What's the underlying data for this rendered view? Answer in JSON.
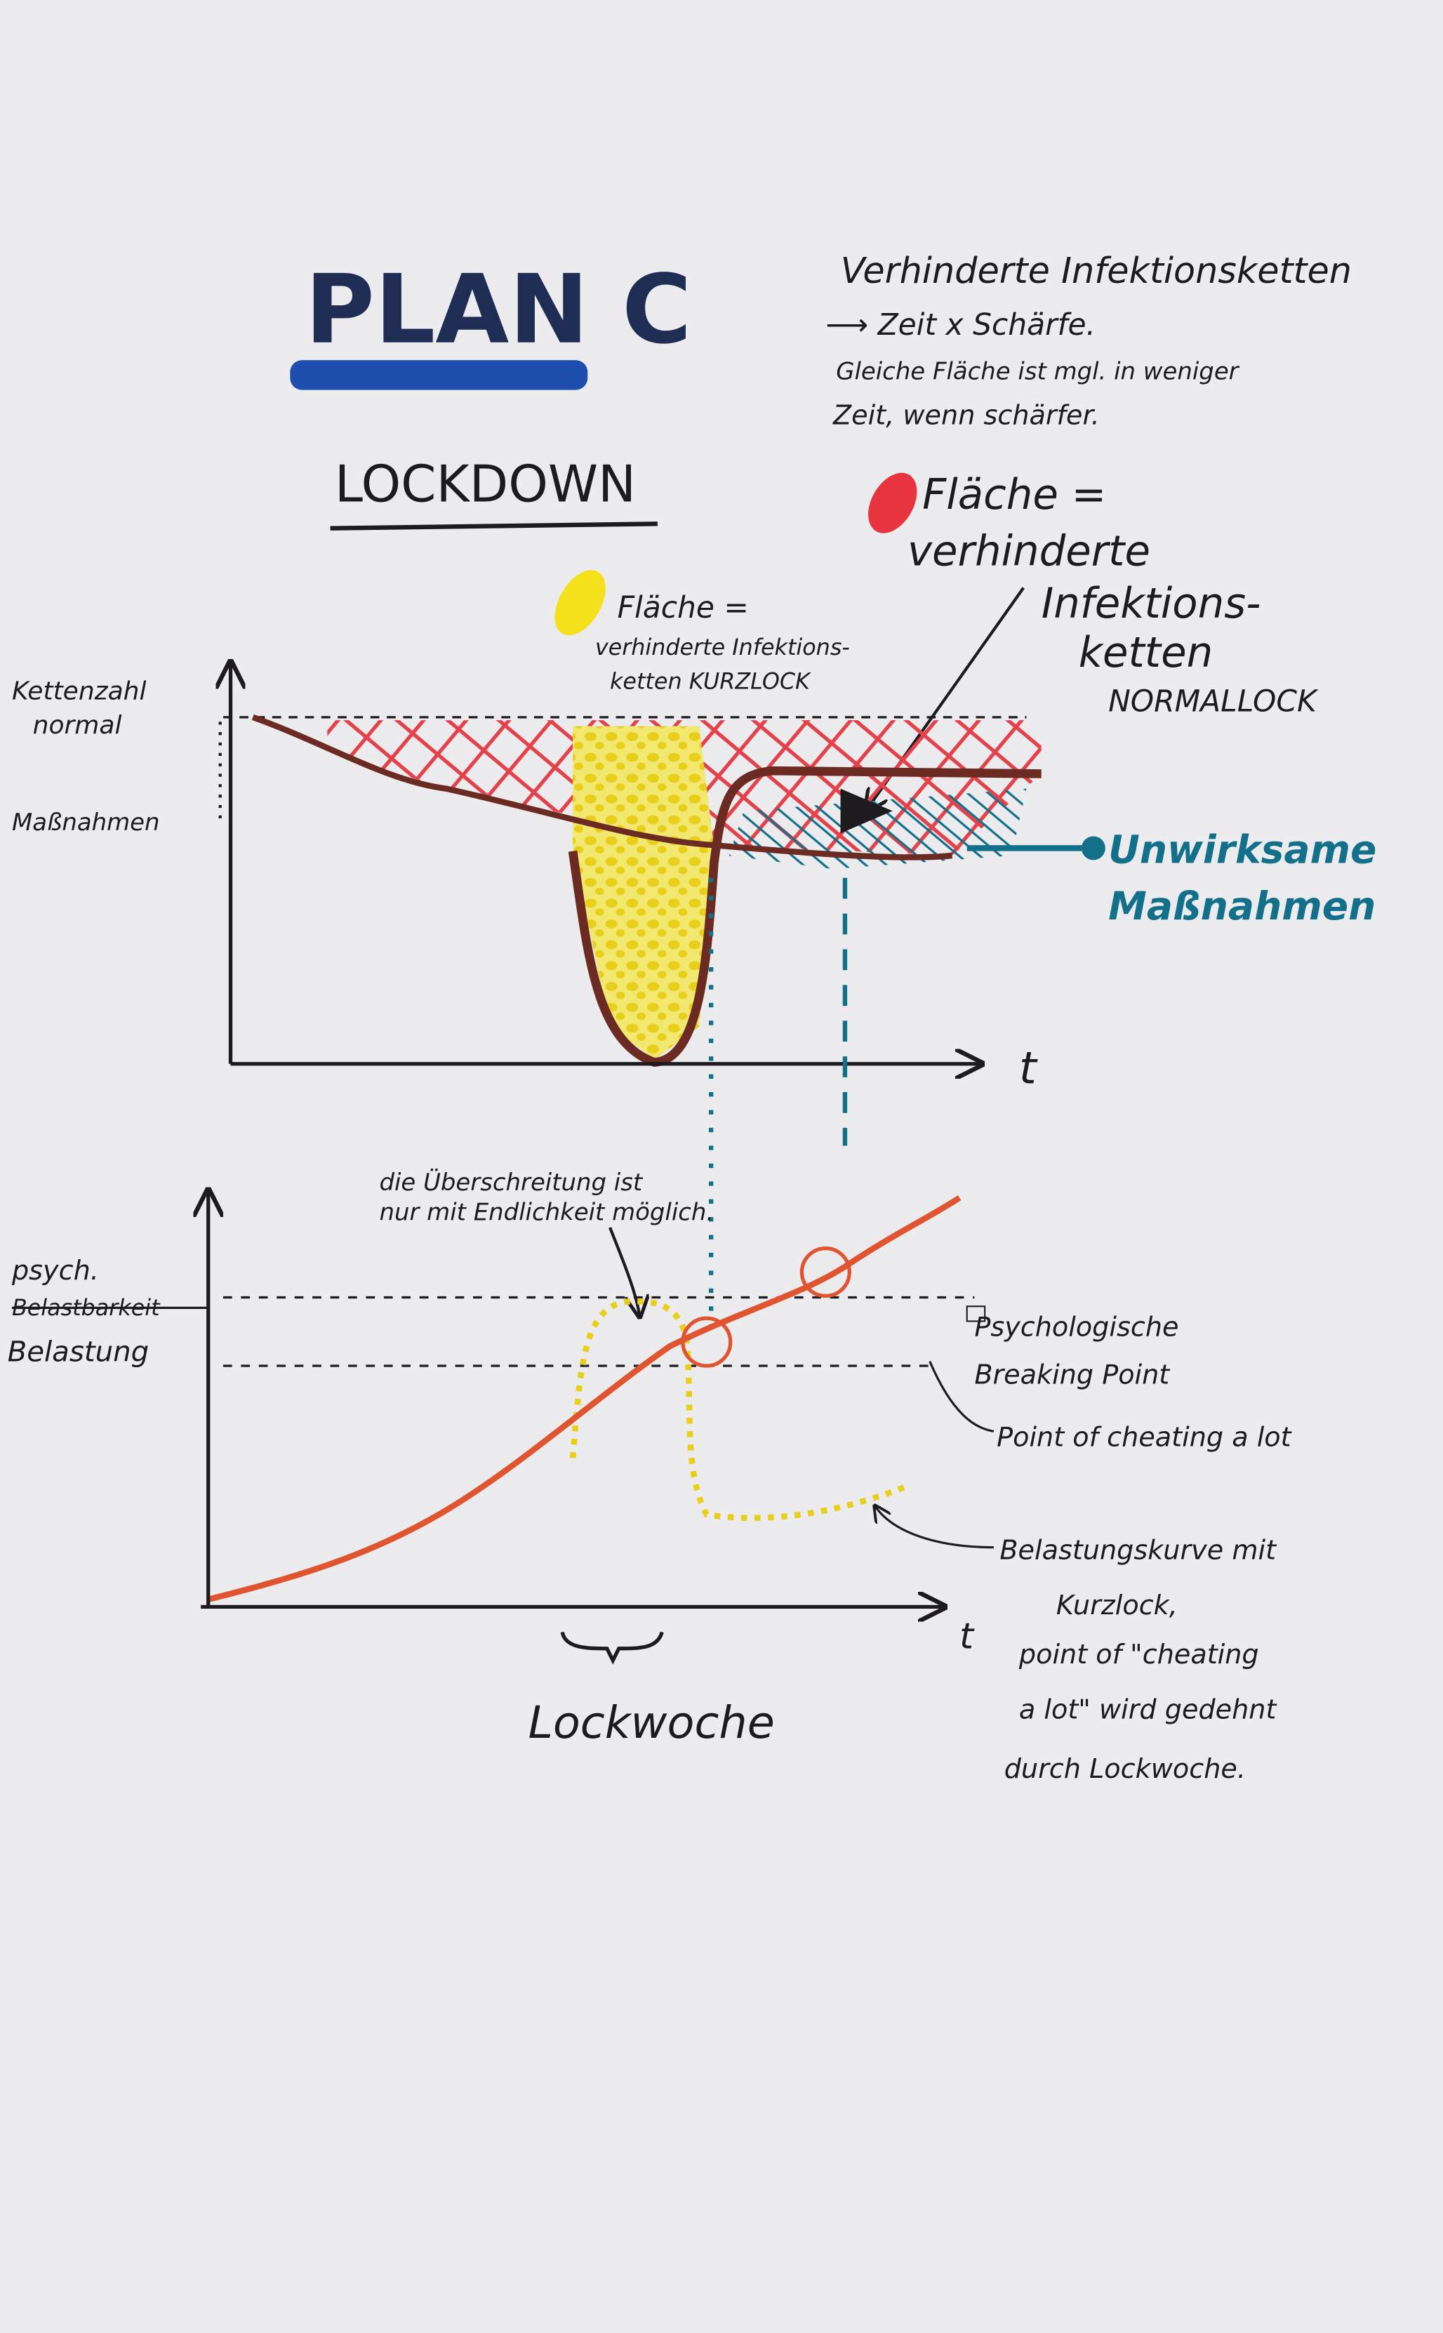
{
  "header": {
    "title": "PLAN C",
    "subtitle": "LOCKDOWN"
  },
  "notes": {
    "lines": [
      "Verhinderte Infektionsketten",
      "⟶ Zeit x Schärfe.",
      "Gleiche Fläche ist mgl. in weniger",
      "Zeit, wenn schärfer."
    ]
  },
  "top_chart": {
    "y_label_top": [
      "Kettenzahl",
      "normal"
    ],
    "y_label_bottom": "Maßnahmen",
    "x_label": "t",
    "red_note": [
      "Fläche =",
      "verhinderte",
      "Infektions-",
      "ketten",
      "NORMALLOCK"
    ],
    "yellow_note": [
      "Fläche =",
      "verhinderte Infektions-",
      "ketten  KURZLOCK"
    ],
    "teal_note": [
      "Unwirksame",
      "Maßnahmen"
    ]
  },
  "bottom_chart": {
    "note": [
      "die Überschreitung ist",
      "nur mit Endlichkeit möglich."
    ],
    "y_labels": [
      "psych.",
      "Belastbarkeit",
      "Belastung"
    ],
    "x_label": "t",
    "brace_label": "Lockwoche",
    "breaking_point": [
      "Psychologische",
      "Breaking Point"
    ],
    "cheating_point": "Point of cheating a lot",
    "curve_note": [
      "Belastungskurve mit",
      "Kurzlock,",
      "point of \"cheating",
      "a lot\" wird gedehnt",
      "durch Lockwoche."
    ]
  }
}
